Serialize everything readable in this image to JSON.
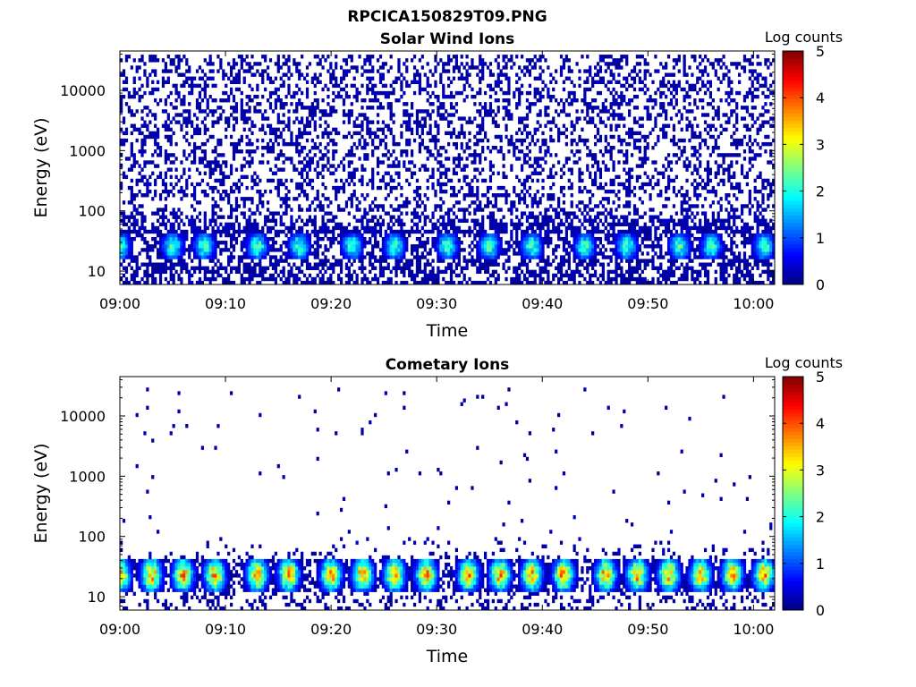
{
  "title": "RPCICA150829T09.PNG",
  "chart_data": [
    {
      "type": "heatmap",
      "title": "Solar Wind Ions",
      "xlabel": "Time",
      "ylabel": "Energy (eV)",
      "x_range": [
        "09:00",
        "10:02"
      ],
      "x_ticks": [
        "09:00",
        "09:10",
        "09:20",
        "09:30",
        "09:40",
        "09:50",
        "10:00"
      ],
      "y_scale": "log",
      "y_range": [
        6,
        45000
      ],
      "y_ticks": [
        "10",
        "100",
        "1000",
        "10000"
      ],
      "colorbar": {
        "label": "Log counts",
        "range": [
          0,
          5
        ],
        "ticks": [
          "0",
          "1",
          "2",
          "3",
          "4",
          "5"
        ],
        "colormap": "jet"
      },
      "description_values": {
        "band_energy_eV": [
          15,
          45
        ],
        "band_peak_log_counts": 2.2,
        "background_log_counts": 0.1,
        "background_energy_range_eV": [
          100,
          40000
        ],
        "pulse_times": [
          "09:00",
          "09:05",
          "09:08",
          "09:13",
          "09:17",
          "09:22",
          "09:26",
          "09:31",
          "09:35",
          "09:39",
          "09:44",
          "09:48",
          "09:53",
          "09:56",
          "10:01"
        ]
      }
    },
    {
      "type": "heatmap",
      "title": "Cometary Ions",
      "xlabel": "Time",
      "ylabel": "Energy (eV)",
      "x_range": [
        "09:00",
        "10:02"
      ],
      "x_ticks": [
        "09:00",
        "09:10",
        "09:20",
        "09:30",
        "09:40",
        "09:50",
        "10:00"
      ],
      "y_scale": "log",
      "y_range": [
        6,
        45000
      ],
      "y_ticks": [
        "10",
        "100",
        "1000",
        "10000"
      ],
      "colorbar": {
        "label": "Log counts",
        "range": [
          0,
          5
        ],
        "ticks": [
          "0",
          "1",
          "2",
          "3",
          "4",
          "5"
        ],
        "colormap": "jet"
      },
      "description_values": {
        "band_energy_eV": [
          12,
          45
        ],
        "band_peak_log_counts": 3.5,
        "background_log_counts": 0.1,
        "background_energy_range_eV": [
          100,
          30000
        ],
        "pulse_times": [
          "09:00",
          "09:03",
          "09:06",
          "09:09",
          "09:13",
          "09:16",
          "09:20",
          "09:23",
          "09:26",
          "09:29",
          "09:33",
          "09:36",
          "09:39",
          "09:42",
          "09:46",
          "09:49",
          "09:52",
          "09:55",
          "09:58",
          "10:01"
        ]
      }
    }
  ]
}
